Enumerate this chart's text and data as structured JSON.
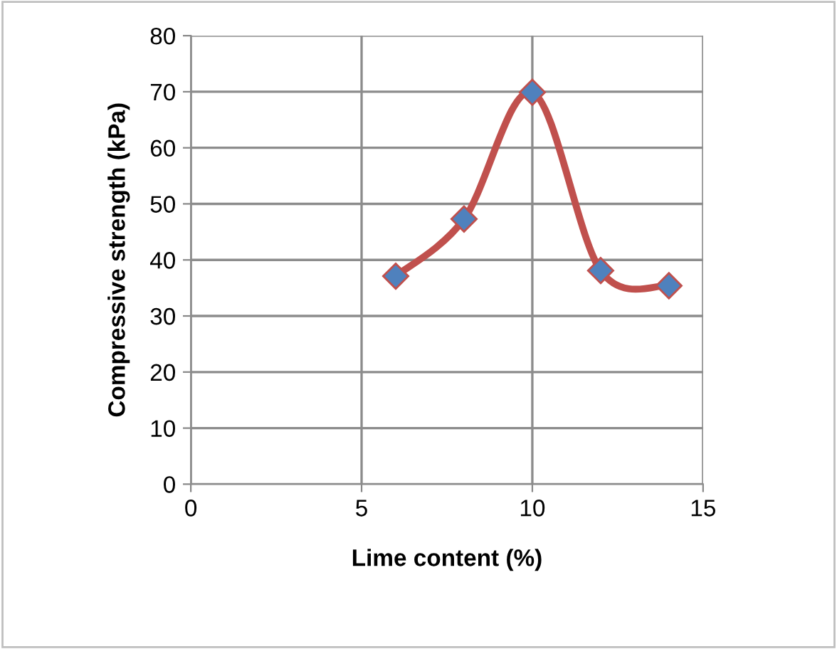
{
  "chart_data": {
    "type": "line",
    "xlabel": "Lime content (%)",
    "ylabel": "Compressive strength (kPa)",
    "x": [
      6,
      8,
      10,
      12,
      14
    ],
    "series": [
      {
        "color": "#c0504d",
        "values": [
          37.1,
          47.3,
          69.9,
          38.1,
          35.4
        ]
      }
    ],
    "xlim": [
      0,
      15
    ],
    "xticks": [
      0,
      5,
      10,
      15
    ],
    "ylim": [
      0,
      80
    ],
    "yticks": [
      0,
      10,
      20,
      30,
      40,
      50,
      60,
      70,
      80
    ],
    "grid": true,
    "marker": "diamond",
    "line_style": "solid",
    "legend": false
  }
}
